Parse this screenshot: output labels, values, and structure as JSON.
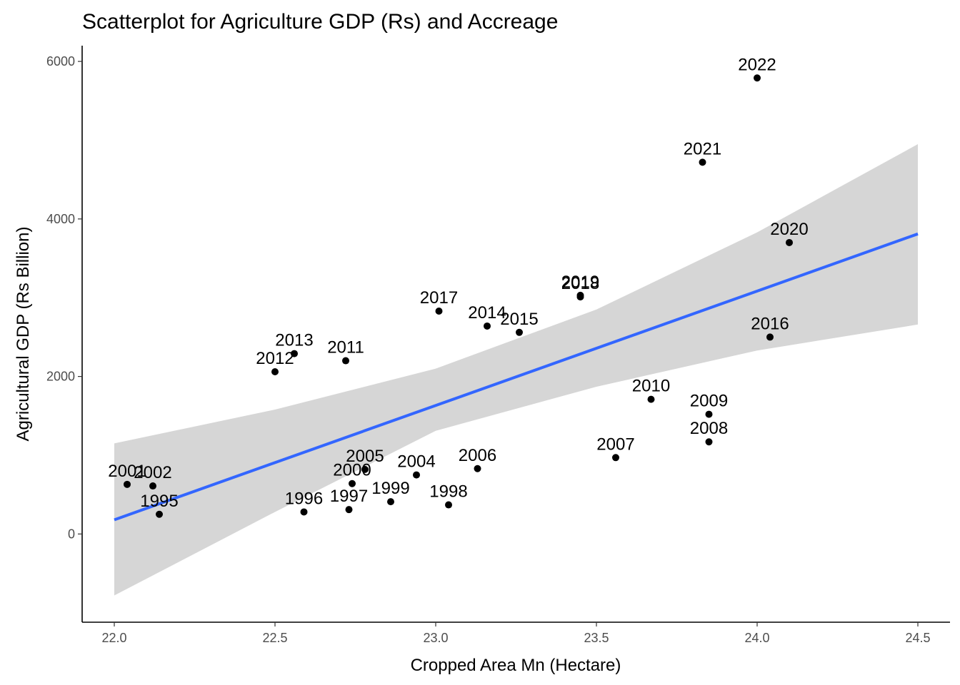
{
  "chart_data": {
    "type": "scatter",
    "title": "Scatterplot for Agriculture GDP (Rs) and Accreage",
    "xlabel": "Cropped Area Mn (Hectare)",
    "ylabel": "Agricultural GDP (Rs Billion)",
    "xlim": [
      21.9,
      24.6
    ],
    "ylim": [
      -1120,
      6200
    ],
    "x_ticks": [
      22.0,
      22.5,
      23.0,
      23.5,
      24.0,
      24.5
    ],
    "x_tick_labels": [
      "22.0",
      "22.5",
      "23.0",
      "23.5",
      "24.0",
      "24.5"
    ],
    "y_ticks": [
      0,
      2000,
      4000,
      6000
    ],
    "y_tick_labels": [
      "0",
      "2000",
      "4000",
      "6000"
    ],
    "grid": false,
    "points": [
      {
        "label": "1995",
        "x": 22.14,
        "y": 250
      },
      {
        "label": "1996",
        "x": 22.59,
        "y": 280
      },
      {
        "label": "1997",
        "x": 22.73,
        "y": 310
      },
      {
        "label": "1998",
        "x": 23.04,
        "y": 370
      },
      {
        "label": "1999",
        "x": 22.86,
        "y": 410
      },
      {
        "label": "2000",
        "x": 22.74,
        "y": 640
      },
      {
        "label": "2001",
        "x": 22.04,
        "y": 630
      },
      {
        "label": "2002",
        "x": 22.12,
        "y": 610
      },
      {
        "label": "2004",
        "x": 22.94,
        "y": 750
      },
      {
        "label": "2005",
        "x": 22.78,
        "y": 820
      },
      {
        "label": "2006",
        "x": 23.13,
        "y": 830
      },
      {
        "label": "2007",
        "x": 23.56,
        "y": 970
      },
      {
        "label": "2008",
        "x": 23.85,
        "y": 1170
      },
      {
        "label": "2009",
        "x": 23.85,
        "y": 1520
      },
      {
        "label": "2010",
        "x": 23.67,
        "y": 1710
      },
      {
        "label": "2011",
        "x": 22.72,
        "y": 2200
      },
      {
        "label": "2012",
        "x": 22.5,
        "y": 2060
      },
      {
        "label": "2013",
        "x": 22.56,
        "y": 2290
      },
      {
        "label": "2014",
        "x": 23.16,
        "y": 2640
      },
      {
        "label": "2015",
        "x": 23.26,
        "y": 2560
      },
      {
        "label": "2016",
        "x": 24.04,
        "y": 2500
      },
      {
        "label": "2017",
        "x": 23.01,
        "y": 2830
      },
      {
        "label": "2018",
        "x": 23.45,
        "y": 3010
      },
      {
        "label": "2019",
        "x": 23.45,
        "y": 3030
      },
      {
        "label": "2020",
        "x": 24.1,
        "y": 3700
      },
      {
        "label": "2021",
        "x": 23.83,
        "y": 4720
      },
      {
        "label": "2022",
        "x": 24.0,
        "y": 5790
      }
    ],
    "regression": {
      "method": "lm",
      "line": [
        {
          "x": 22.0,
          "y": 180
        },
        {
          "x": 24.5,
          "y": 3810
        }
      ],
      "confidence_band": {
        "x": [
          22.0,
          22.5,
          23.0,
          23.5,
          24.0,
          24.5
        ],
        "upper": [
          1150,
          1580,
          2100,
          2850,
          3830,
          4950
        ],
        "lower": [
          -780,
          280,
          1310,
          1870,
          2330,
          2660
        ]
      }
    },
    "colors": {
      "point": "#000000",
      "line": "#3366ff",
      "band": "#d6d6d6",
      "axis": "#000000",
      "tick_label": "#4d4d4d"
    }
  }
}
